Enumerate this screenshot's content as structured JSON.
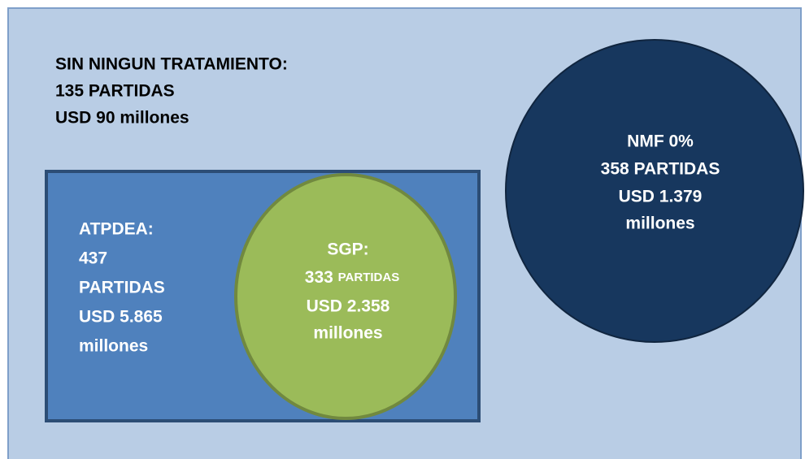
{
  "no_treatment": {
    "lines": [
      "SIN NINGUN TRATAMIENTO:",
      "135 PARTIDAS",
      "USD 90 millones"
    ]
  },
  "atpdea": {
    "lines": [
      "ATPDEA:",
      "437",
      "PARTIDAS",
      "USD 5.865",
      "millones"
    ]
  },
  "sgp": {
    "title": "SGP:",
    "count": "333",
    "count_unit": "PARTIDAS",
    "lines": [
      "USD 2.358",
      "millones"
    ]
  },
  "nmf": {
    "lines": [
      "NMF 0%",
      "358 PARTIDAS",
      "USD 1.379",
      "millones"
    ]
  }
}
